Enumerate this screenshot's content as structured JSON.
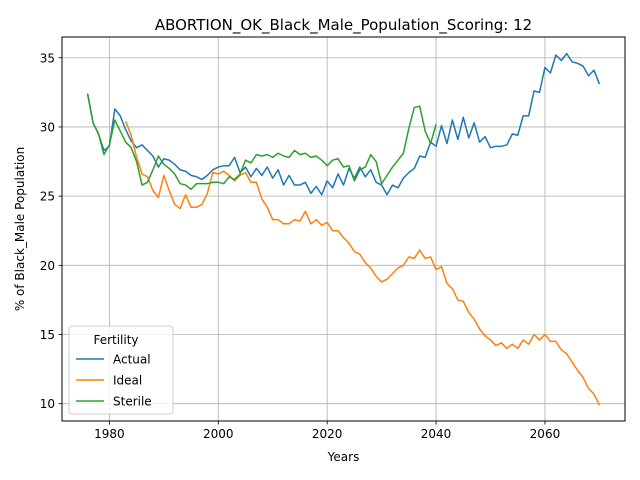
{
  "chart_data": {
    "type": "line",
    "title": "ABORTION_OK_Black_Male_Population_Scoring: 12",
    "xlabel": "Years",
    "ylabel": "% of Black_Male Population",
    "xlim": [
      1971.3,
      1974.7
    ],
    "ylim": [
      8.75,
      36.5
    ],
    "x_ticks": [
      1980,
      2000,
      2020,
      2040,
      2060
    ],
    "y_ticks": [
      10,
      15,
      20,
      25,
      30,
      35
    ],
    "grid": true,
    "legend": {
      "title": "Fertility",
      "placement": "lower-left"
    },
    "series": [
      {
        "name": "Actual",
        "color": "#1f77b4",
        "x": [
          1976,
          1977,
          1978,
          1979,
          1980,
          1981,
          1982,
          1983,
          1984,
          1985,
          1986,
          1987,
          1988,
          1989,
          1990,
          1991,
          1992,
          1993,
          1994,
          1995,
          1996,
          1997,
          1998,
          1999,
          2000,
          2001,
          2002,
          2003,
          2004,
          2005,
          2006,
          2007,
          2008,
          2009,
          2010,
          2011,
          2012,
          2013,
          2014,
          2015,
          2016,
          2017,
          2018,
          2019,
          2020,
          2021,
          2022,
          2023,
          2024,
          2025,
          2026,
          2027,
          2028,
          2029,
          2030,
          2031,
          2032,
          2033,
          2034,
          2035,
          2036,
          2037,
          2038,
          2039,
          2040,
          2041,
          2042,
          2043,
          2044,
          2045,
          2046,
          2047,
          2048,
          2049,
          2050,
          2051,
          2052,
          2053,
          2054,
          2055,
          2056,
          2057,
          2058,
          2059,
          2060,
          2061,
          2062,
          2063,
          2064,
          2065,
          2066,
          2067,
          2068,
          2069,
          2070
        ],
        "values": [
          32.4,
          30.3,
          29.5,
          28.3,
          28.6,
          31.3,
          30.8,
          29.8,
          29.0,
          28.5,
          28.7,
          28.3,
          27.9,
          27.1,
          27.7,
          27.6,
          27.3,
          26.9,
          26.8,
          26.5,
          26.4,
          26.2,
          26.5,
          26.9,
          27.1,
          27.2,
          27.2,
          27.8,
          26.7,
          27.1,
          26.4,
          27.0,
          26.5,
          27.1,
          26.3,
          26.9,
          25.8,
          26.5,
          25.8,
          25.8,
          26.0,
          25.2,
          25.7,
          25.1,
          26.1,
          25.6,
          26.6,
          25.8,
          27.0,
          26.3,
          27.1,
          26.4,
          26.9,
          26.0,
          25.8,
          25.1,
          25.8,
          25.6,
          26.3,
          26.7,
          27.0,
          27.9,
          27.8,
          28.9,
          28.6,
          30.1,
          28.8,
          30.5,
          29.1,
          30.7,
          29.2,
          30.3,
          28.9,
          29.3,
          28.5,
          28.6,
          28.6,
          28.7,
          29.5,
          29.4,
          30.8,
          30.8,
          32.6,
          32.5,
          34.3,
          33.9,
          35.2,
          34.8,
          35.3,
          34.7,
          34.6,
          34.4,
          33.7,
          34.1,
          33.1
        ]
      },
      {
        "name": "Ideal",
        "color": "#ff7f0e",
        "x": [
          1983,
          1984,
          1985,
          1986,
          1987,
          1988,
          1989,
          1990,
          1991,
          1992,
          1993,
          1994,
          1995,
          1996,
          1997,
          1998,
          1999,
          2000,
          2001,
          2002,
          2003,
          2004,
          2005,
          2006,
          2007,
          2008,
          2009,
          2010,
          2011,
          2012,
          2013,
          2014,
          2015,
          2016,
          2017,
          2018,
          2019,
          2020,
          2021,
          2022,
          2023,
          2024,
          2025,
          2026,
          2027,
          2028,
          2029,
          2030,
          2031,
          2032,
          2033,
          2034,
          2035,
          2036,
          2037,
          2038,
          2039,
          2040,
          2041,
          2042,
          2043,
          2044,
          2045,
          2046,
          2047,
          2048,
          2049,
          2050,
          2051,
          2052,
          2053,
          2054,
          2055,
          2056,
          2057,
          2058,
          2059,
          2060,
          2061,
          2062,
          2063,
          2064,
          2065,
          2066,
          2067,
          2068,
          2069,
          2070
        ],
        "values": [
          30.4,
          29.4,
          27.8,
          26.6,
          26.4,
          25.4,
          24.9,
          26.5,
          25.4,
          24.4,
          24.1,
          25.1,
          24.2,
          24.2,
          24.4,
          25.2,
          26.7,
          26.6,
          26.8,
          26.5,
          26.1,
          26.5,
          26.7,
          26.0,
          26.0,
          24.8,
          24.2,
          23.3,
          23.3,
          23.0,
          23.0,
          23.3,
          23.2,
          23.9,
          23.0,
          23.3,
          22.9,
          23.1,
          22.5,
          22.5,
          22.0,
          21.6,
          21.0,
          20.8,
          20.2,
          19.8,
          19.2,
          18.8,
          19.0,
          19.4,
          19.8,
          20.0,
          20.6,
          20.5,
          21.1,
          20.5,
          20.6,
          19.7,
          19.9,
          18.7,
          18.3,
          17.5,
          17.4,
          16.6,
          16.1,
          15.4,
          14.9,
          14.6,
          14.2,
          14.4,
          14.0,
          14.3,
          14.0,
          14.6,
          14.3,
          15.0,
          14.6,
          15.0,
          14.5,
          14.5,
          13.9,
          13.6,
          13.0,
          12.4,
          11.9,
          11.1,
          10.7,
          9.9
        ]
      },
      {
        "name": "Sterile",
        "color": "#2ca02c",
        "x": [
          1976,
          1977,
          1978,
          1979,
          1980,
          1981,
          1982,
          1983,
          1984,
          1985,
          1986,
          1987,
          1988,
          1989,
          1990,
          1991,
          1992,
          1993,
          1994,
          1995,
          1996,
          1997,
          1998,
          1999,
          2000,
          2001,
          2002,
          2003,
          2004,
          2005,
          2006,
          2007,
          2008,
          2009,
          2010,
          2011,
          2012,
          2013,
          2014,
          2015,
          2016,
          2017,
          2018,
          2019,
          2020,
          2021,
          2022,
          2023,
          2024,
          2025,
          2026,
          2027,
          2028,
          2029,
          2030,
          2031,
          2032,
          2033,
          2034,
          2035,
          2036,
          2037,
          2038,
          2039,
          2040
        ],
        "values": [
          32.4,
          30.3,
          29.5,
          28.0,
          28.7,
          30.5,
          29.7,
          28.9,
          28.5,
          27.5,
          25.8,
          26.0,
          26.9,
          27.9,
          27.3,
          27.0,
          26.6,
          25.9,
          25.8,
          25.5,
          25.9,
          25.9,
          25.9,
          26.0,
          26.0,
          25.9,
          26.4,
          26.2,
          26.6,
          27.6,
          27.4,
          28.0,
          27.9,
          28.0,
          27.8,
          28.1,
          27.9,
          27.8,
          28.3,
          28.0,
          28.1,
          27.8,
          27.9,
          27.6,
          27.2,
          27.6,
          27.7,
          27.1,
          27.2,
          26.1,
          26.9,
          27.1,
          28.0,
          27.5,
          25.9,
          26.5,
          27.1,
          27.6,
          28.1,
          29.9,
          31.4,
          31.5,
          29.7,
          28.8,
          30.2
        ]
      }
    ]
  }
}
